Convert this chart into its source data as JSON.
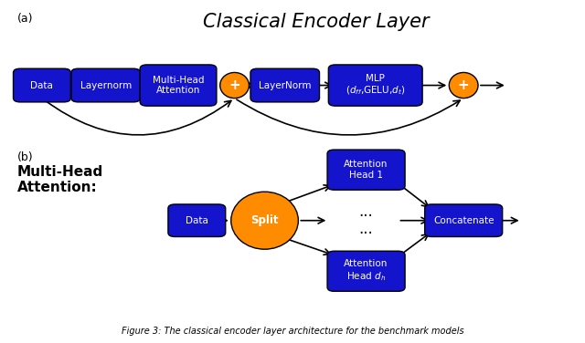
{
  "title_a": "Classical Encoder Layer",
  "label_a": "(a)",
  "label_b": "(b)",
  "blue_color": "#1414CC",
  "orange_color": "#FF8C00",
  "text_color": "white",
  "arrow_color": "black",
  "bg_color": "white",
  "fig_caption": "Figure 3: The classical encoder layer architecture for the benchmark models"
}
